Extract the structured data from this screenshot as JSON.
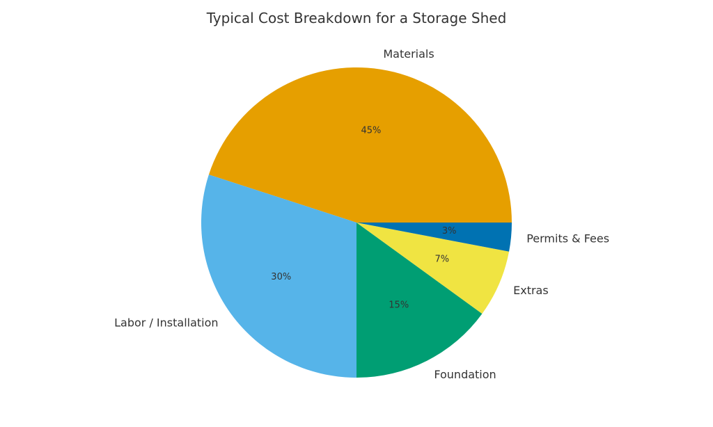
{
  "chart_data": {
    "type": "pie",
    "title": "Typical Cost Breakdown for a Storage Shed",
    "categories": [
      "Materials",
      "Labor / Installation",
      "Foundation",
      "Extras",
      "Permits & Fees"
    ],
    "values": [
      45,
      30,
      15,
      7,
      3
    ],
    "value_labels": [
      "45%",
      "30%",
      "15%",
      "7%",
      "3%"
    ],
    "colors": [
      "#E69F00",
      "#56B4E9",
      "#009E73",
      "#F0E442",
      "#0072B2"
    ],
    "start_angle_deg": 0,
    "direction": "counterclockwise",
    "legend": "none",
    "unit": "percent"
  }
}
